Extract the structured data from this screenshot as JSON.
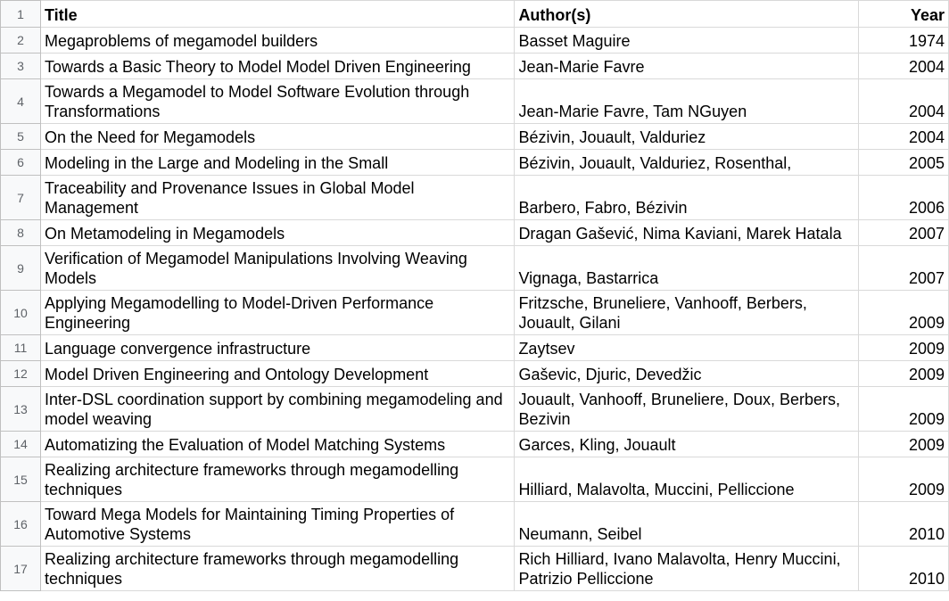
{
  "sheet": {
    "columns": [
      "Title",
      "Author(s)",
      "Year"
    ],
    "rows": [
      {
        "row": "1",
        "title": "Title",
        "authors": "Author(s)",
        "year": "Year",
        "header": true
      },
      {
        "row": "2",
        "title": "Megaproblems of megamodel builders",
        "authors": "Basset Maguire",
        "year": "1974"
      },
      {
        "row": "3",
        "title": "Towards a Basic Theory to Model Model Driven Engineering",
        "authors": "Jean-Marie Favre",
        "year": "2004"
      },
      {
        "row": "4",
        "title": "Towards a Megamodel to Model Software Evolution through Transformations",
        "authors": "Jean-Marie Favre, Tam NGuyen",
        "year": "2004"
      },
      {
        "row": "5",
        "title": "On the Need for Megamodels",
        "authors": "Bézivin, Jouault, Valduriez",
        "year": "2004"
      },
      {
        "row": "6",
        "title": "Modeling in the Large and Modeling in the Small",
        "authors": "Bézivin, Jouault, Valduriez, Rosenthal,",
        "year": "2005"
      },
      {
        "row": "7",
        "title": "Traceability and Provenance Issues in Global Model Management",
        "authors": "Barbero, Fabro, Bézivin",
        "year": "2006"
      },
      {
        "row": "8",
        "title": "On Metamodeling in Megamodels",
        "authors": "Dragan Gašević, Nima Kaviani, Marek Hatala",
        "year": "2007"
      },
      {
        "row": "9",
        "title": "Verification of Megamodel Manipulations Involving Weaving Models",
        "authors": "Vignaga, Bastarrica",
        "year": "2007"
      },
      {
        "row": "10",
        "title": "Applying Megamodelling to Model-Driven Performance Engineering",
        "authors": "Fritzsche, Bruneliere, Vanhooff, Berbers, Jouault, Gilani",
        "year": "2009"
      },
      {
        "row": "11",
        "title": "Language convergence infrastructure",
        "authors": "Zaytsev",
        "year": "2009"
      },
      {
        "row": "12",
        "title": "Model Driven Engineering and Ontology Development",
        "authors": "Gaševic, Djuric, Devedžic",
        "year": "2009"
      },
      {
        "row": "13",
        "title": "Inter-DSL coordination support by combining megamodeling and model weaving",
        "authors": "Jouault, Vanhooff, Bruneliere, Doux, Berbers, Bezivin",
        "year": "2009"
      },
      {
        "row": "14",
        "title": "Automatizing the Evaluation of Model Matching Systems",
        "authors": "Garces, Kling, Jouault",
        "year": "2009"
      },
      {
        "row": "15",
        "title": "Realizing architecture frameworks through megamodelling techniques",
        "authors": "Hilliard, Malavolta, Muccini, Pelliccione",
        "year": "2009"
      },
      {
        "row": "16",
        "title": "Toward Mega Models for Maintaining Timing Properties of Automotive Systems",
        "authors": "Neumann, Seibel",
        "year": "2010"
      },
      {
        "row": "17",
        "title": "Realizing architecture frameworks through megamodelling techniques",
        "authors": "Rich Hilliard, Ivano Malavolta, Henry Muccini, Patrizio Pelliccione",
        "year": "2010"
      }
    ]
  },
  "colors": {
    "grid": "#d9d9d9",
    "row_header_bg": "#f8f9fa",
    "row_header_text": "#5f6368",
    "text": "#000000"
  }
}
